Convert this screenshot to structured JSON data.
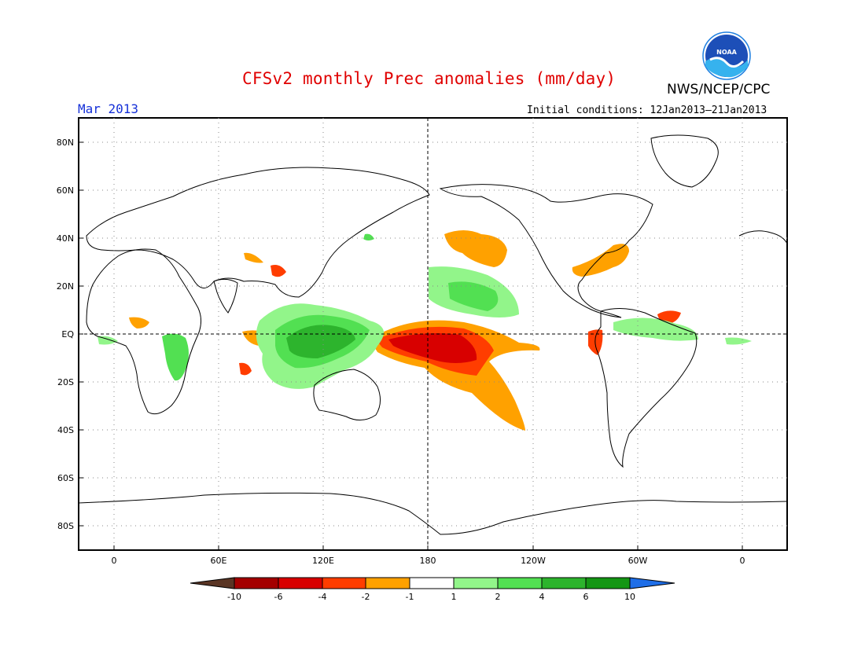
{
  "header": {
    "title": "CFSv2 monthly Prec anomalies (mm/day)",
    "period": "Mar 2013",
    "initial_conditions": "Initial conditions: 12Jan2013–21Jan2013",
    "agency": "NWS/NCEP/CPC",
    "logo_text": "NOAA"
  },
  "axes": {
    "lat_labels": [
      "80N",
      "60N",
      "40N",
      "20N",
      "EQ",
      "20S",
      "40S",
      "60S",
      "80S"
    ],
    "lon_labels": [
      "0",
      "60E",
      "120E",
      "180",
      "120W",
      "60W",
      "0"
    ]
  },
  "colorbar": {
    "labels": [
      "-10",
      "-6",
      "-4",
      "-2",
      "-1",
      "1",
      "2",
      "4",
      "6",
      "10"
    ],
    "colors": [
      "#5a3524",
      "#a40000",
      "#d80000",
      "#ff3d00",
      "#ffa100",
      "#ffffff",
      "#92f58a",
      "#52e052",
      "#2db42d",
      "#149614",
      "#1e6ee8"
    ]
  },
  "colors": {
    "dry_strong": "#d80000",
    "dry_mid": "#ff3d00",
    "dry_weak": "#ffa100",
    "wet_weak": "#92f58a",
    "wet_mid": "#52e052",
    "wet_strong": "#2db42d"
  }
}
